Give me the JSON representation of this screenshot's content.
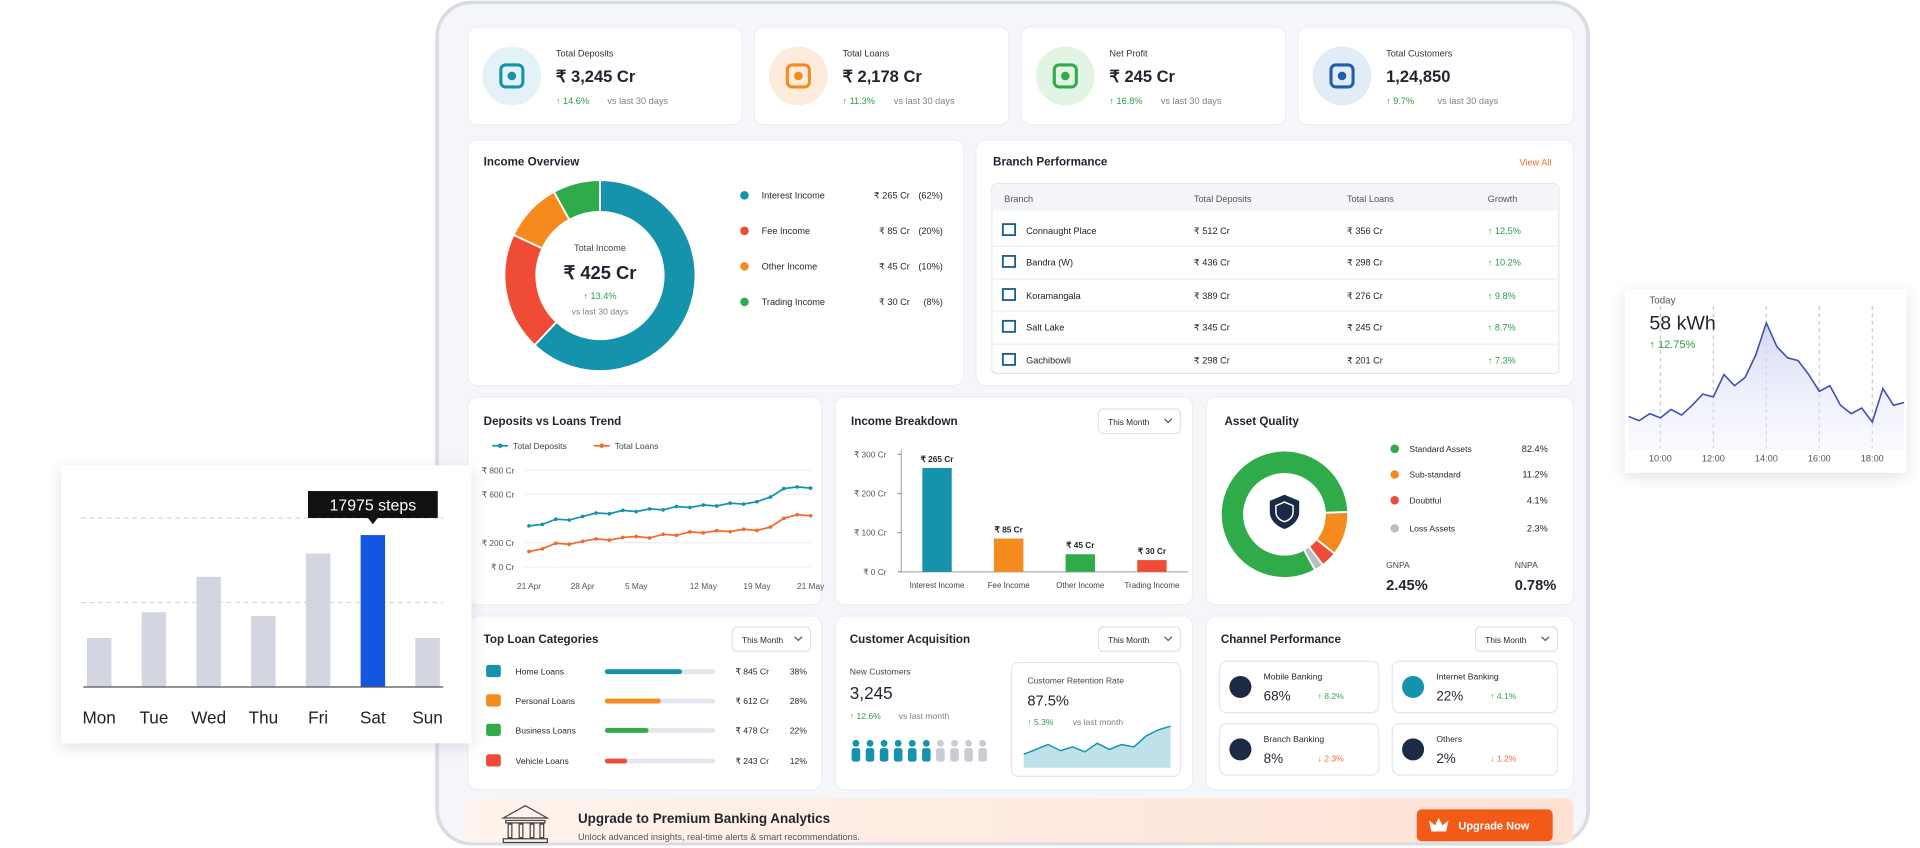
{
  "kpis": [
    {
      "label": "Total Deposits",
      "value": "₹ 3,245 Cr",
      "change": "↑ 14.6%",
      "period": "vs last 30 days",
      "color": "#1593ac",
      "bg": "#e2f2f6"
    },
    {
      "label": "Total Loans",
      "value": "₹ 2,178 Cr",
      "change": "↑ 11.3%",
      "period": "vs last 30 days",
      "color": "#f58a1f",
      "bg": "#fdecdb"
    },
    {
      "label": "Net Profit",
      "value": "₹ 245 Cr",
      "change": "↑ 16.8%",
      "period": "vs last 30 days",
      "color": "#2fab4a",
      "bg": "#e2f4e4"
    },
    {
      "label": "Total Customers",
      "value": "1,24,850",
      "change": "↑ 9.7%",
      "period": "vs last 30 days",
      "color": "#1d5fa8",
      "bg": "#e2ecf7"
    }
  ],
  "income_overview": {
    "type": "pie",
    "title": "Income Overview",
    "center_label": "Total Income",
    "center_value": "₹ 425 Cr",
    "center_change": "↑ 13.4%",
    "center_period": "vs last 30 days",
    "items": [
      {
        "name": "Interest Income",
        "amount": "₹ 265 Cr",
        "share": 62,
        "share_label": "(62%)",
        "color": "#1593ac"
      },
      {
        "name": "Fee Income",
        "amount": "₹ 85 Cr",
        "share": 20,
        "share_label": "(20%)",
        "color": "#f04b35"
      },
      {
        "name": "Other Income",
        "amount": "₹ 45 Cr",
        "share": 10,
        "share_label": "(10%)",
        "color": "#f58a1f"
      },
      {
        "name": "Trading Income",
        "amount": "₹ 30 Cr",
        "share": 8,
        "share_label": "(8%)",
        "color": "#2fab4a"
      }
    ]
  },
  "branch_performance": {
    "title": "Branch Performance",
    "link": "View All",
    "columns": [
      "Branch",
      "Total Deposits",
      "Total Loans",
      "Growth"
    ],
    "rows": [
      [
        "Connaught Place",
        "₹ 512 Cr",
        "₹ 356 Cr",
        "↑ 12.5%"
      ],
      [
        "Bandra (W)",
        "₹ 436 Cr",
        "₹ 298 Cr",
        "↑ 10.2%"
      ],
      [
        "Koramangala",
        "₹ 389 Cr",
        "₹ 276 Cr",
        "↑ 9.8%"
      ],
      [
        "Salt Lake",
        "₹ 345 Cr",
        "₹ 245 Cr",
        "↑ 8.7%"
      ],
      [
        "Gachibowli",
        "₹ 298 Cr",
        "₹ 201 Cr",
        "↑ 7.3%"
      ]
    ]
  },
  "deposits_trend": {
    "type": "line",
    "title": "Deposits vs Loans Trend",
    "series": [
      {
        "name": "Total Deposits",
        "color": "#1593ac",
        "values": [
          340,
          352,
          395,
          388,
          418,
          446,
          440,
          468,
          458,
          480,
          472,
          500,
          492,
          512,
          504,
          528,
          520,
          540,
          578,
          648,
          662,
          652
        ]
      },
      {
        "name": "Total Loans",
        "color": "#f26a2a",
        "values": [
          128,
          150,
          196,
          188,
          212,
          232,
          222,
          244,
          252,
          240,
          270,
          262,
          290,
          282,
          300,
          292,
          312,
          302,
          330,
          402,
          432,
          424
        ]
      }
    ],
    "xlim": [
      0,
      21
    ],
    "xticks": [
      {
        "value": 0,
        "label": "21 Apr"
      },
      {
        "value": 4,
        "label": "28 Apr"
      },
      {
        "value": 8,
        "label": "5 May"
      },
      {
        "value": 13,
        "label": "12 May"
      },
      {
        "value": 17,
        "label": "19 May"
      },
      {
        "value": 21,
        "label": "21 May"
      }
    ],
    "ylim": [
      0,
      800
    ],
    "yticks": [
      {
        "value": 0,
        "label": "₹ 0 Cr"
      },
      {
        "value": 200,
        "label": "₹ 200 Cr"
      },
      {
        "value": 600,
        "label": "₹ 600 Cr"
      },
      {
        "value": 800,
        "label": "₹ 800 Cr"
      }
    ]
  },
  "income_breakdown": {
    "type": "bar",
    "title": "Income Breakdown",
    "filter": "This Month",
    "categories": [
      "Interest Income",
      "Fee Income",
      "Other Income",
      "Trading Income"
    ],
    "values": [
      265,
      85,
      45,
      30
    ],
    "value_labels": [
      "₹ 265 Cr",
      "₹ 85 Cr",
      "₹ 45 Cr",
      "₹ 30 Cr"
    ],
    "colors": [
      "#1593ac",
      "#f58a1f",
      "#2fab4a",
      "#f04b35"
    ],
    "ylim": [
      0,
      300
    ],
    "yticks": [
      {
        "value": 0,
        "label": "₹ 0 Cr"
      },
      {
        "value": 100,
        "label": "₹ 100 Cr"
      },
      {
        "value": 200,
        "label": "₹ 200 Cr"
      },
      {
        "value": 300,
        "label": "₹ 300 Cr"
      }
    ]
  },
  "asset_quality": {
    "type": "pie",
    "title": "Asset Quality",
    "categories": [
      "Standard Assets",
      "Sub-standard",
      "Doubtful",
      "Loss Assets"
    ],
    "values": [
      82.4,
      11.2,
      4.1,
      2.3
    ],
    "value_labels": [
      "82.4%",
      "11.2%",
      "4.1%",
      "2.3%"
    ],
    "colors": [
      "#2fab4a",
      "#f58a1f",
      "#f04b35",
      "#b9bdc7"
    ],
    "metrics": [
      {
        "label": "GNPA",
        "value": "2.45%"
      },
      {
        "label": "NNPA",
        "value": "0.78%"
      }
    ]
  },
  "top_loan_categories": {
    "title": "Top Loan Categories",
    "filter": "This Month",
    "items": [
      {
        "name": "Home Loans",
        "value": 845,
        "value_label": "₹ 845 Cr",
        "share": "38%",
        "color": "#1593ac"
      },
      {
        "name": "Personal Loans",
        "value": 612,
        "value_label": "₹ 612 Cr",
        "share": "28%",
        "color": "#f58a1f"
      },
      {
        "name": "Business Loans",
        "value": 478,
        "value_label": "₹ 478 Cr",
        "share": "22%",
        "color": "#2fab4a"
      },
      {
        "name": "Vehicle Loans",
        "value": 243,
        "value_label": "₹ 243 Cr",
        "share": "12%",
        "color": "#f04b35"
      }
    ]
  },
  "customer_acquisition": {
    "title": "Customer Acquisition",
    "filter": "This Month",
    "new_label": "New Customers",
    "new_value": "3,245",
    "new_change": "↑ 12.6%",
    "new_period": "vs last month",
    "retention_label": "Customer Retention Rate",
    "retention_value": "87.5%",
    "retention_change": "↑ 5.3%",
    "retention_period": "vs last month"
  },
  "channel_performance": {
    "title": "Channel Performance",
    "filter": "This Month",
    "items": [
      {
        "name": "Mobile Banking",
        "share": "68%",
        "change": "↑ 8.2%",
        "color": "#2fab4a"
      },
      {
        "name": "Internet Banking",
        "share": "22%",
        "change": "↑ 4.1%",
        "color": "#2fab4a"
      },
      {
        "name": "Branch Banking",
        "share": "8%",
        "change": "↓ 2.3%",
        "color": "#f26a2a"
      },
      {
        "name": "Others",
        "share": "2%",
        "change": "↓ 1.2%",
        "color": "#f26a2a"
      }
    ]
  },
  "upgrade_banner": {
    "title": "Upgrade to Premium Banking Analytics",
    "subtitle": "Unlock advanced insights, real-time alerts & smart recommendations.",
    "button": "Upgrade Now"
  },
  "steps_widget": {
    "type": "bar",
    "categories": [
      "Mon",
      "Tue",
      "Wed",
      "Thu",
      "Fri",
      "Sat",
      "Sun"
    ],
    "values": [
      5800,
      8840,
      13040,
      8400,
      15800,
      17975,
      5800
    ],
    "ylim": [
      0,
      20000
    ],
    "gridlines": [
      10000,
      20000
    ],
    "color": "#d3d6e0",
    "highlight_index": 5,
    "highlight_color": "#1456e0",
    "tooltip": "17975 steps"
  },
  "energy_widget": {
    "type": "line",
    "label": "Today",
    "value": "58 kWh",
    "change": "↑ 12.75%",
    "color": "#3f4fb8",
    "x": [
      8.8,
      9.2,
      9.6,
      10,
      10.4,
      10.8,
      11.2,
      11.6,
      12,
      12.4,
      12.8,
      13.2,
      13.6,
      14,
      14.4,
      14.8,
      15.2,
      15.6,
      16,
      16.4,
      16.8,
      17.2,
      17.6,
      18,
      18.4,
      18.8,
      19.2
    ],
    "values": [
      2.8,
      2.5,
      3.0,
      2.7,
      3.3,
      2.9,
      3.6,
      4.4,
      4.2,
      5.8,
      5.0,
      5.6,
      7.2,
      9.5,
      7.8,
      7.0,
      6.8,
      5.8,
      4.6,
      5.0,
      3.6,
      3.0,
      3.4,
      2.4,
      4.8,
      3.6,
      3.8
    ],
    "xlim": [
      8.8,
      19.2
    ],
    "ylim": [
      0,
      10
    ],
    "xticks": [
      {
        "value": 10,
        "label": "10:00"
      },
      {
        "value": 12,
        "label": "12:00"
      },
      {
        "value": 14,
        "label": "14:00"
      },
      {
        "value": 16,
        "label": "16:00"
      },
      {
        "value": 18,
        "label": "18:00"
      }
    ]
  }
}
